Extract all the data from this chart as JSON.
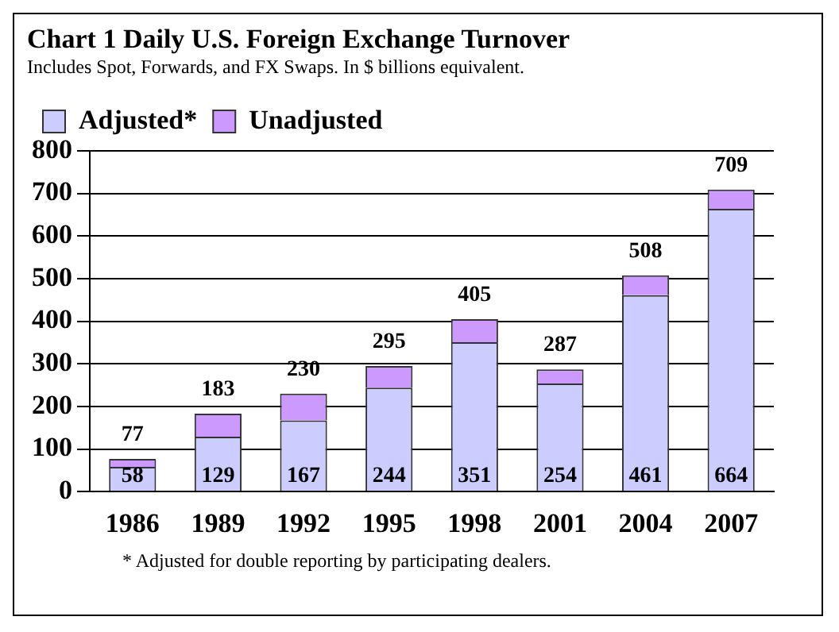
{
  "chart_data": {
    "type": "bar",
    "title": "Chart 1  Daily U.S. Foreign Exchange Turnover",
    "subtitle": "Includes Spot, Forwards, and FX Swaps.  In $ billions equivalent.",
    "categories": [
      "1986",
      "1989",
      "1992",
      "1995",
      "1998",
      "2001",
      "2004",
      "2007"
    ],
    "series": [
      {
        "name": "Adjusted*",
        "color": "#ccccff",
        "values": [
          58,
          129,
          167,
          244,
          351,
          254,
          461,
          664
        ],
        "value_labels": [
          "58",
          "129",
          "167",
          "244",
          "351",
          "254",
          "461",
          "664"
        ]
      },
      {
        "name": "Unadjusted",
        "color": "#cc99ff",
        "values": [
          19,
          54,
          63,
          51,
          54,
          33,
          47,
          45
        ]
      }
    ],
    "totals": [
      "77",
      "183",
      "230",
      "295",
      "405",
      "287",
      "508",
      "709"
    ],
    "stacked": true,
    "ylim": [
      0,
      800
    ],
    "yticks": [
      0,
      100,
      200,
      300,
      400,
      500,
      600,
      700,
      800
    ],
    "grid": "y",
    "legend": "top left",
    "annotations": [
      "*  Adjusted for double reporting by participating dealers."
    ]
  }
}
